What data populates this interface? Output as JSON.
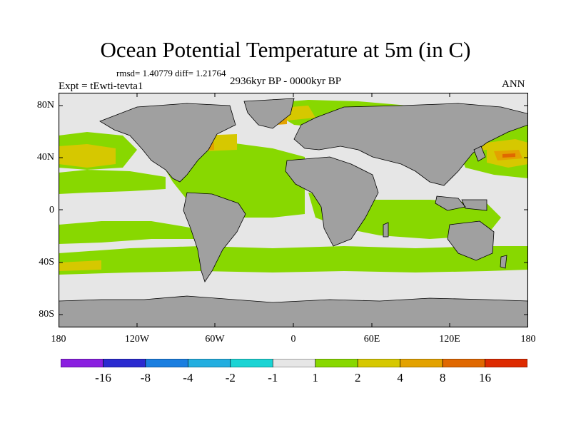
{
  "title": "Ocean Potential Temperature at 5m (in C)",
  "stats": "rmsd= 1.40779 diff= 1.21764",
  "experiment": "Expt = tEwti-tevta1",
  "period": "2936kyr BP - 0000kyr BP",
  "season": "ANN",
  "axes": {
    "lat_labels": [
      "80N",
      "40N",
      "0",
      "40S",
      "80S"
    ],
    "lon_labels": [
      "180",
      "120W",
      "60W",
      "0",
      "60E",
      "120E",
      "180"
    ]
  },
  "colorbar": {
    "levels": [
      "-16",
      "-8",
      "-4",
      "-2",
      "-1",
      "1",
      "2",
      "4",
      "8",
      "16"
    ],
    "colors": [
      "#8a1fe0",
      "#2a2ad0",
      "#1a7ee0",
      "#22aee0",
      "#1ad4d4",
      "#e6e6e6",
      "#88d800",
      "#d6c800",
      "#e3a200",
      "#e06800",
      "#de2a00"
    ]
  },
  "colors": {
    "land": "#a0a0a0",
    "ocean_neutral": "#e6e6e6",
    "warm_1_2": "#88d800",
    "warm_2_4": "#d6c800",
    "warm_4_8": "#e3a200",
    "warm_8_16": "#e06800"
  }
}
